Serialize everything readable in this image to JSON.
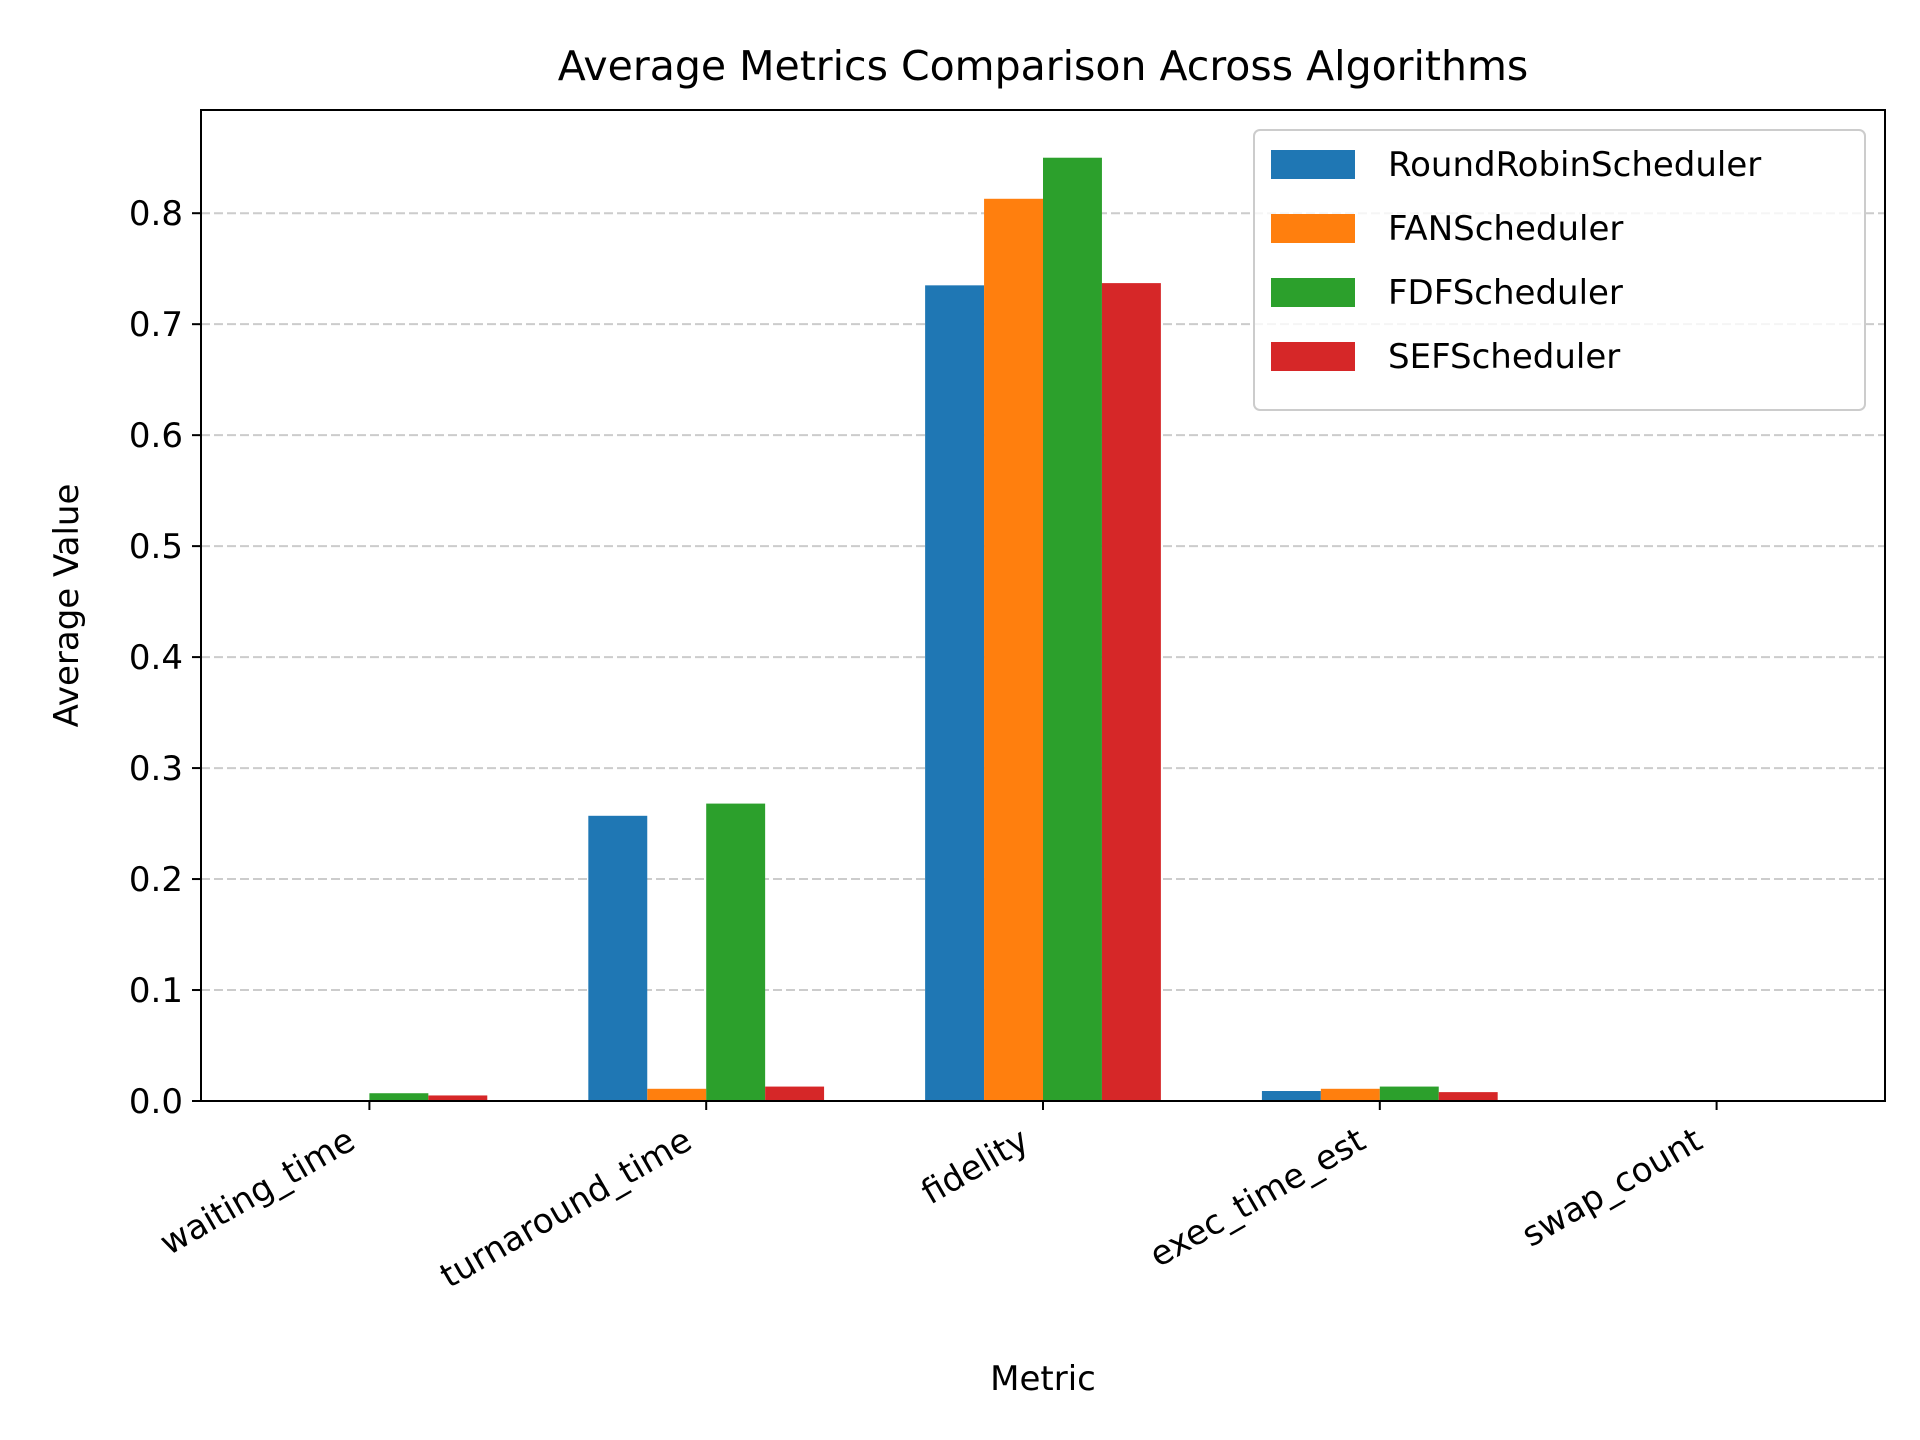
{
  "chart_data": {
    "type": "bar",
    "title": "Average Metrics Comparison Across Algorithms",
    "xlabel": "Metric",
    "ylabel": "Average Value",
    "categories": [
      "waiting_time",
      "turnaround_time",
      "fidelity",
      "exec_time_est",
      "swap_count"
    ],
    "series": [
      {
        "name": "RoundRobinScheduler",
        "color": "#1f77b4",
        "values": [
          0.0,
          0.257,
          0.735,
          0.009,
          0.0
        ]
      },
      {
        "name": "FANScheduler",
        "color": "#ff7f0e",
        "values": [
          0.0,
          0.011,
          0.813,
          0.011,
          0.0
        ]
      },
      {
        "name": "FDFScheduler",
        "color": "#2ca02c",
        "values": [
          0.007,
          0.268,
          0.85,
          0.013,
          0.0
        ]
      },
      {
        "name": "SEFScheduler",
        "color": "#d62728",
        "values": [
          0.005,
          0.013,
          0.737,
          0.008,
          0.0
        ]
      }
    ],
    "ylim": [
      0,
      0.893
    ],
    "yticks": [
      0.0,
      0.1,
      0.2,
      0.3,
      0.4,
      0.5,
      0.6,
      0.7,
      0.8
    ],
    "ytick_labels": [
      "0.0",
      "0.1",
      "0.2",
      "0.3",
      "0.4",
      "0.5",
      "0.6",
      "0.7",
      "0.8"
    ],
    "grid": "y-dashed",
    "legend_position": "top-right"
  }
}
